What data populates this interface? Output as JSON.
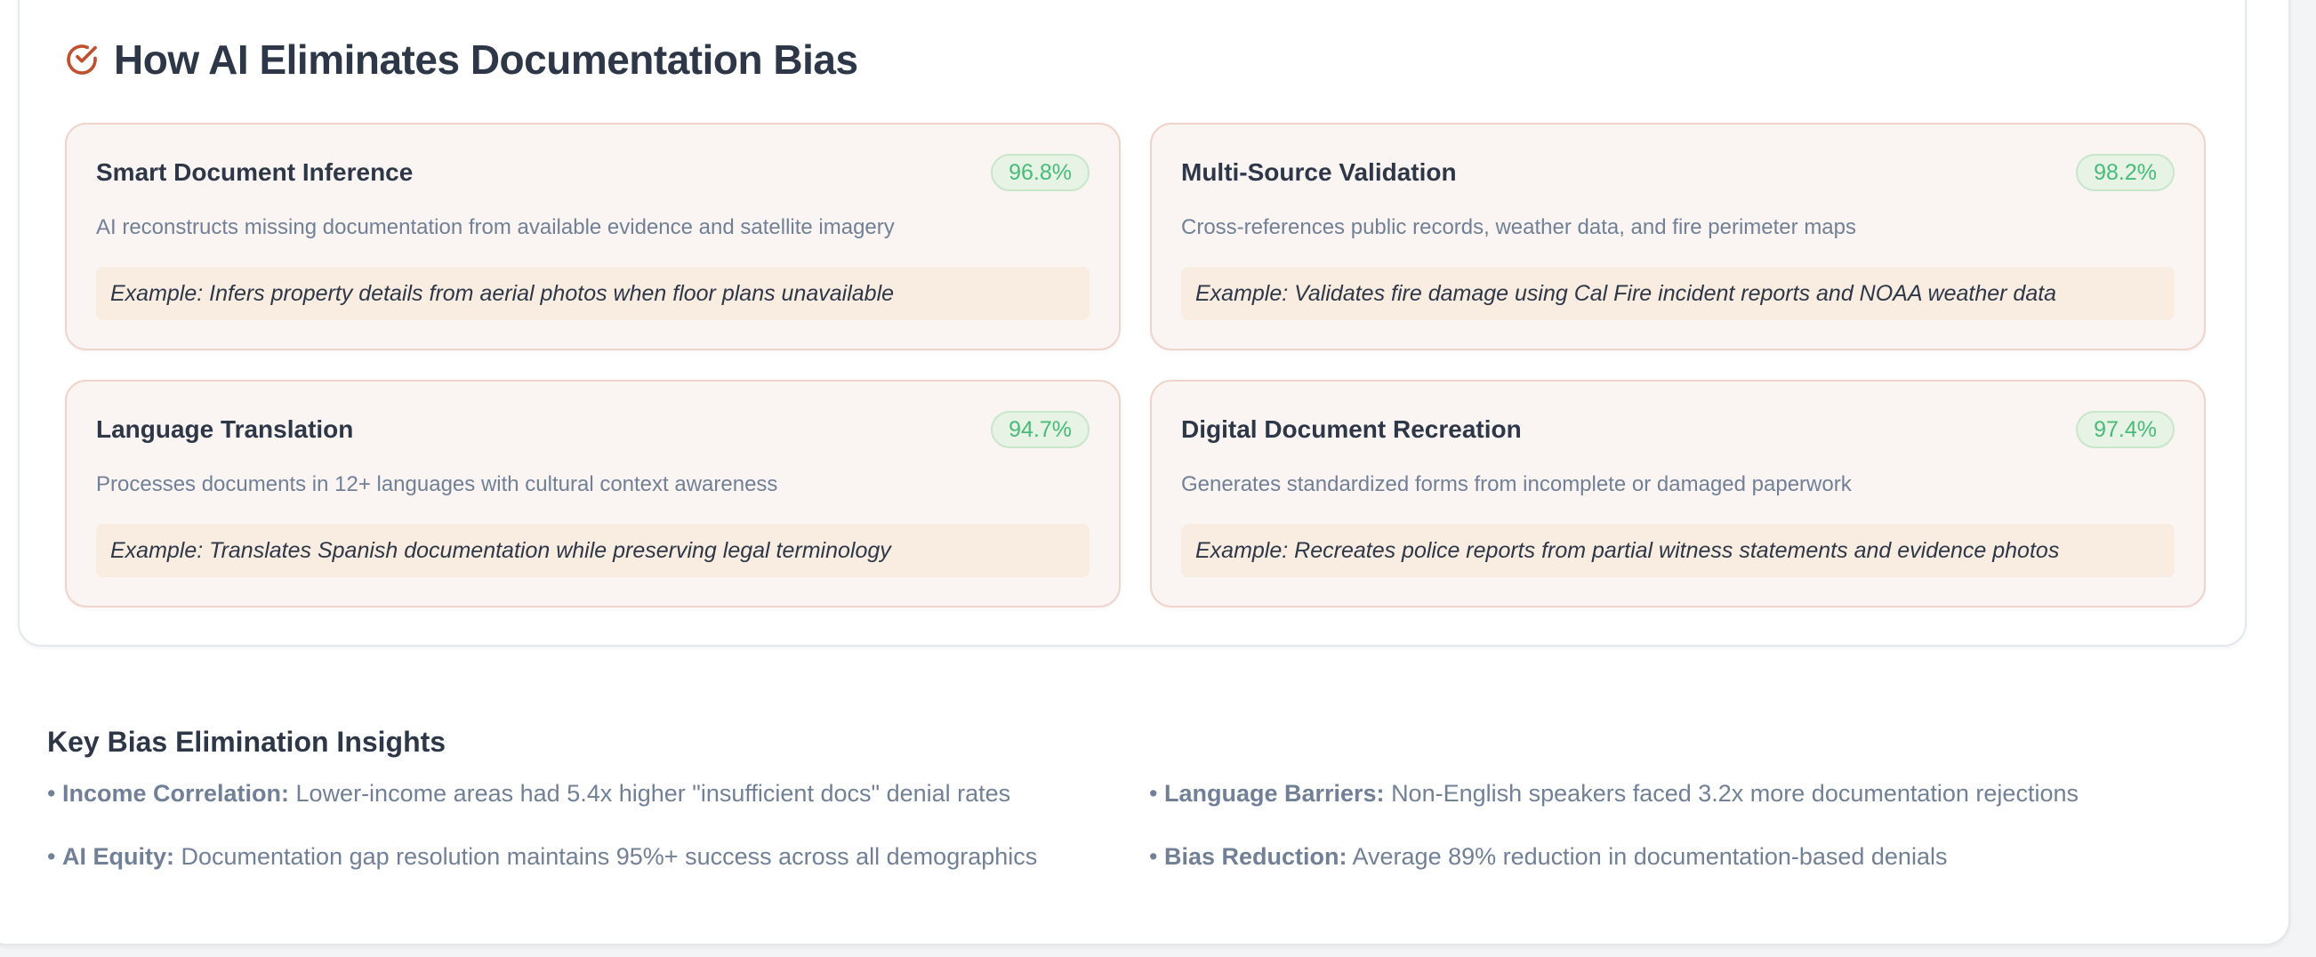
{
  "title": "How AI Eliminates Documentation Bias",
  "icon_color": "#c0502e",
  "cards": [
    {
      "title": "Smart Document Inference",
      "score": "96.8%",
      "description": "AI reconstructs missing documentation from available evidence and satellite imagery",
      "example": "Example: Infers property details from aerial photos when floor plans unavailable"
    },
    {
      "title": "Multi-Source Validation",
      "score": "98.2%",
      "description": "Cross-references public records, weather data, and fire perimeter maps",
      "example": "Example: Validates fire damage using Cal Fire incident reports and NOAA weather data"
    },
    {
      "title": "Language Translation",
      "score": "94.7%",
      "description": "Processes documents in 12+ languages with cultural context awareness",
      "example": "Example: Translates Spanish documentation while preserving legal terminology"
    },
    {
      "title": "Digital Document Recreation",
      "score": "97.4%",
      "description": "Generates standardized forms from incomplete or damaged paperwork",
      "example": "Example: Recreates police reports from partial witness statements and evidence photos"
    }
  ],
  "insights": {
    "heading": "Key Bias Elimination Insights",
    "items": [
      {
        "label": "Income Correlation:",
        "text": "Lower-income areas had 5.4x higher \"insufficient docs\" denial rates"
      },
      {
        "label": "Language Barriers:",
        "text": "Non-English speakers faced 3.2x more documentation rejections"
      },
      {
        "label": "AI Equity:",
        "text": "Documentation gap resolution maintains 95%+ success across all demographics"
      },
      {
        "label": "Bias Reduction:",
        "text": "Average 89% reduction in documentation-based denials"
      }
    ]
  }
}
